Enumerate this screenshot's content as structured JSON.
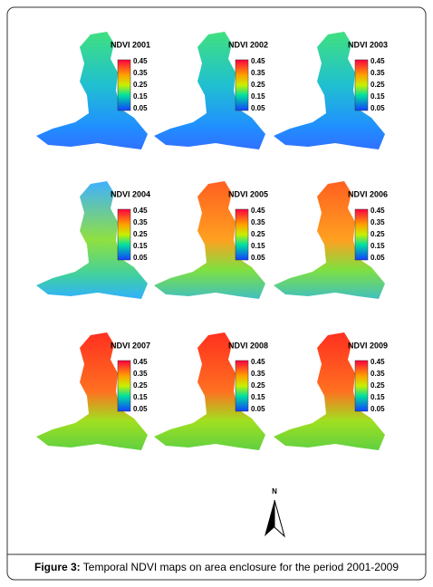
{
  "panels": [
    {
      "title": "NDVI 2001",
      "legend": [
        "0.45",
        "0.35",
        "0.25",
        "0.15",
        "0.05"
      ]
    },
    {
      "title": "NDVI 2002",
      "legend": [
        "0.45",
        "0.35",
        "0.25",
        "0.15",
        "0.05"
      ]
    },
    {
      "title": "NDVI 2003",
      "legend": [
        "0.45",
        "0.35",
        "0.25",
        "0.15",
        "0.05"
      ]
    },
    {
      "title": "NDVI 2004",
      "legend": [
        "0.45",
        "0.35",
        "0.25",
        "0.15",
        "0.05"
      ]
    },
    {
      "title": "NDVI 2005",
      "legend": [
        "0.45",
        "0.35",
        "0.25",
        "0.15",
        "0.05"
      ]
    },
    {
      "title": "NDVI 2006",
      "legend": [
        "0.45",
        "0.35",
        "0.25",
        "0.15",
        "0.05"
      ]
    },
    {
      "title": "NDVI 2007",
      "legend": [
        "0.45",
        "0.35",
        "0.25",
        "0.15",
        "0.05"
      ]
    },
    {
      "title": "NDVI 2008",
      "legend": [
        "0.45",
        "0.35",
        "0.25",
        "0.15",
        "0.05"
      ]
    },
    {
      "title": "NDVI 2009",
      "legend": [
        "0.45",
        "0.35",
        "0.25",
        "0.15",
        "0.05"
      ]
    }
  ],
  "north": "N",
  "caption": {
    "label": "Figure 3:",
    "text": "Temporal NDVI maps on area enclosure for the period 2001-2009"
  }
}
